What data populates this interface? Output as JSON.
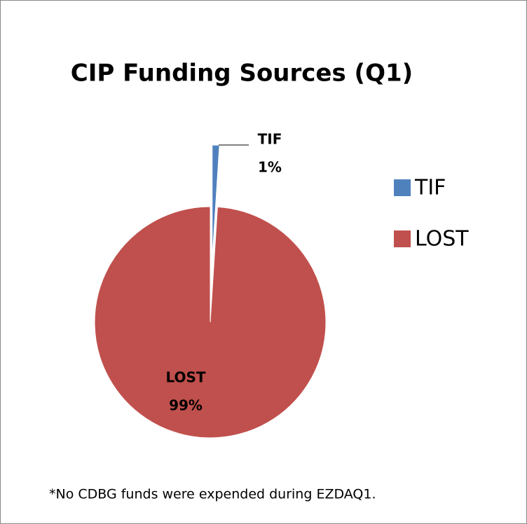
{
  "chart_data": {
    "type": "pie",
    "title": "CIP Funding Sources (Q1)",
    "categories": [
      "TIF",
      "LOST"
    ],
    "values": [
      1,
      99
    ],
    "value_labels": [
      "1%",
      "99%"
    ],
    "colors": [
      "#4f81bd",
      "#c0504d"
    ],
    "legend": "right",
    "annotation": "*No CDBG funds were expended during EZDAQ1."
  }
}
